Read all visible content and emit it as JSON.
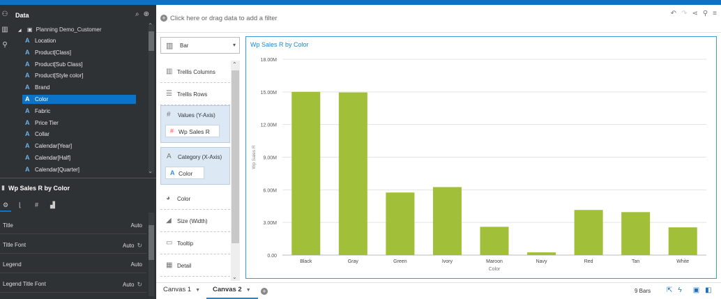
{
  "data_panel": {
    "title": "Data",
    "root": "Planning Demo_Customer",
    "items": [
      {
        "label": "Location",
        "selected": false
      },
      {
        "label": "Product[Class]",
        "selected": false
      },
      {
        "label": "Product[Sub Class]",
        "selected": false
      },
      {
        "label": "Product[Style color]",
        "selected": false
      },
      {
        "label": "Brand",
        "selected": false
      },
      {
        "label": "Color",
        "selected": true
      },
      {
        "label": "Fabric",
        "selected": false
      },
      {
        "label": "Price Tier",
        "selected": false
      },
      {
        "label": "Collar",
        "selected": false
      },
      {
        "label": "Calendar[Year]",
        "selected": false
      },
      {
        "label": "Calendar[Half]",
        "selected": false
      },
      {
        "label": "Calendar[Quarter]",
        "selected": false
      }
    ]
  },
  "properties": {
    "title": "Wp Sales R by Color",
    "rows": [
      {
        "label": "Title",
        "value": "Auto",
        "reset": false
      },
      {
        "label": "Title Font",
        "value": "Auto",
        "reset": true
      },
      {
        "label": "Legend",
        "value": "Auto",
        "reset": false
      },
      {
        "label": "Legend Title Font",
        "value": "Auto",
        "reset": true
      }
    ]
  },
  "filter_bar": {
    "placeholder": "Click here or drag data to add a filter"
  },
  "grammar": {
    "chart_type": "Bar",
    "trellis_columns": "Trellis Columns",
    "trellis_rows": "Trellis Rows",
    "values_label": "Values (Y-Axis)",
    "values_pill": "Wp Sales R",
    "category_label": "Category (X-Axis)",
    "category_pill": "Color",
    "color": "Color",
    "size": "Size (Width)",
    "tooltip": "Tooltip",
    "detail": "Detail"
  },
  "canvas_tabs": [
    {
      "label": "Canvas 1",
      "active": false
    },
    {
      "label": "Canvas 2",
      "active": true
    }
  ],
  "status": {
    "bar_count": "9 Bars"
  },
  "colors": {
    "accent": "#0b74c8",
    "bar": "#a2bf3a",
    "sidebar": "#2f3235"
  },
  "chart_data": {
    "type": "bar",
    "title": "Wp Sales R by Color",
    "xlabel": "Color",
    "ylabel": "Wp Sales R",
    "categories": [
      "Black",
      "Gray",
      "Green",
      "Ivory",
      "Maroon",
      "Navy",
      "Red",
      "Tan",
      "White"
    ],
    "values": [
      15000000,
      14950000,
      5750000,
      6250000,
      2600000,
      250000,
      4150000,
      3950000,
      2550000
    ],
    "ylim": [
      0,
      18000000
    ],
    "yticks": [
      {
        "value": 0,
        "label": "0.00"
      },
      {
        "value": 3000000,
        "label": "3.00M"
      },
      {
        "value": 6000000,
        "label": "6.00M"
      },
      {
        "value": 9000000,
        "label": "9.00M"
      },
      {
        "value": 12000000,
        "label": "12.00M"
      },
      {
        "value": 15000000,
        "label": "15.00M"
      },
      {
        "value": 18000000,
        "label": "18.00M"
      }
    ],
    "grid": true,
    "legend": "none"
  }
}
